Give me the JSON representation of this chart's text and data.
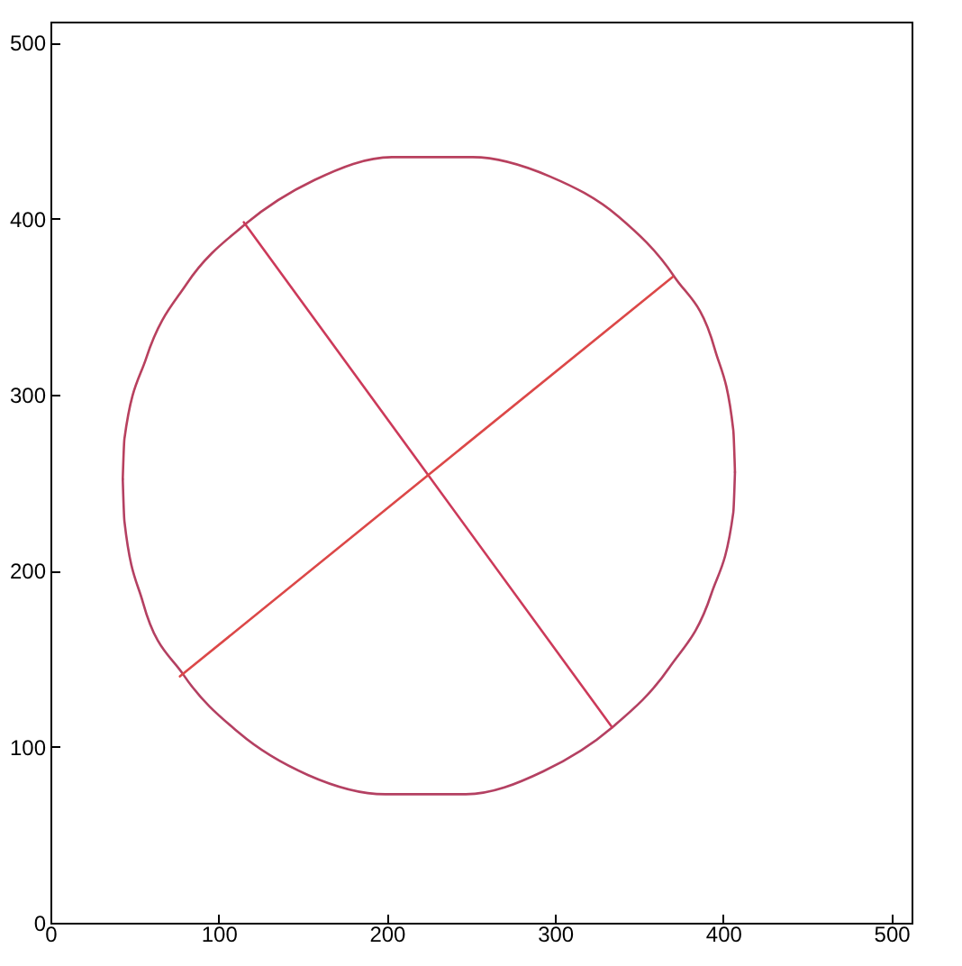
{
  "chart_data": {
    "type": "line",
    "xlim": [
      0,
      512
    ],
    "ylim": [
      0,
      512
    ],
    "xticks": [
      0,
      100,
      200,
      300,
      400,
      500
    ],
    "yticks": [
      0,
      100,
      200,
      300,
      400,
      500
    ],
    "grid": false,
    "marker": "none",
    "line_style": "solid",
    "series": [
      {
        "color": "#b8405e",
        "x": [
          43,
          44,
          57,
          81,
          116,
          157,
          203,
          251,
          297,
          338,
          371,
          395,
          406,
          407
        ],
        "values": [
          252,
          275,
          321,
          363,
          397,
          422,
          435,
          435,
          424,
          401,
          367,
          326,
          280,
          256
        ]
      },
      {
        "color": "#b44062",
        "x": [
          43,
          44,
          55,
          79,
          112,
          153,
          199,
          247,
          293,
          334,
          368,
          393,
          406,
          407
        ],
        "values": [
          252,
          228,
          182,
          141,
          108,
          84,
          73,
          73,
          86,
          111,
          145,
          187,
          233,
          256
        ]
      },
      {
        "color": "#cc3a5a",
        "x": [
          115,
          334
        ],
        "values": [
          398,
          111
        ]
      },
      {
        "color": "#dc4848",
        "x": [
          77,
          370
        ],
        "values": [
          140,
          367
        ]
      }
    ]
  }
}
